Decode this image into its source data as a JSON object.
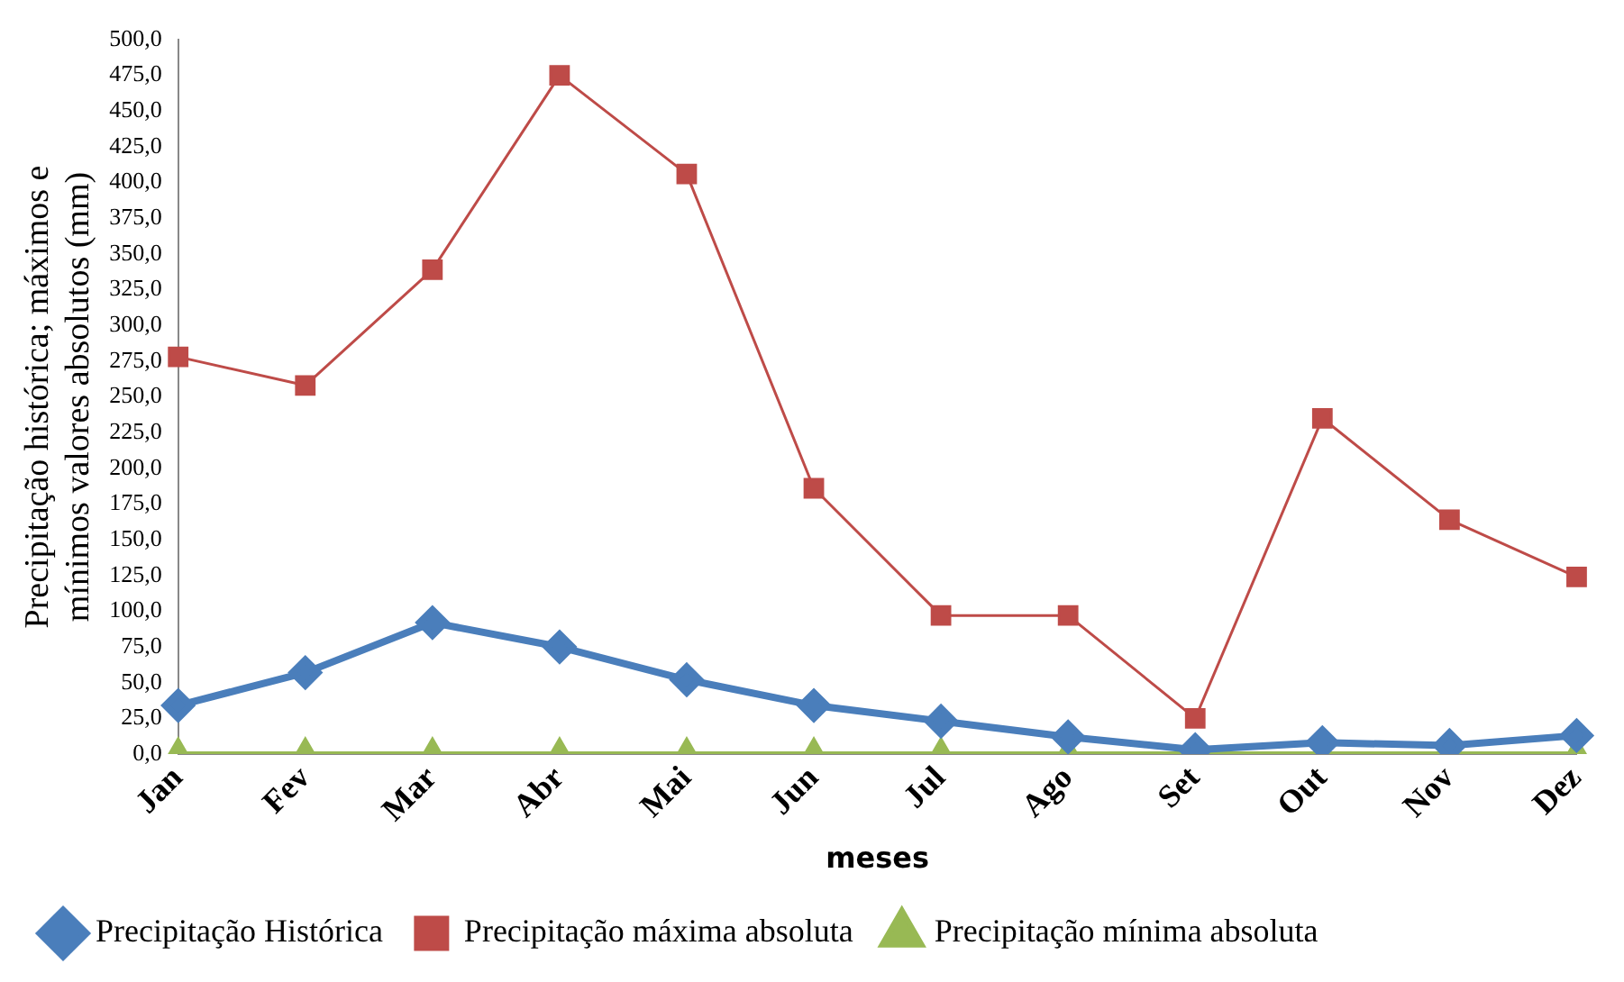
{
  "chart_data": {
    "type": "line",
    "xlabel": "meses",
    "ylabel": "Precipitação histórica; máximos e\nmínimos valores absolutos (mm)",
    "categories": [
      "Jan",
      "Fev",
      "Mar",
      "Abr",
      "Mai",
      "Jun",
      "Jul",
      "Ago",
      "Set",
      "Out",
      "Nov",
      "Dez"
    ],
    "series": [
      {
        "name": "Precipitação Histórica",
        "color": "#4a7ebb",
        "marker": "diamond",
        "values": [
          34,
          57,
          92,
          75,
          52,
          34,
          23,
          12,
          3,
          8,
          6,
          13
        ]
      },
      {
        "name": "Precipitação máxima absoluta",
        "color": "#be4b48",
        "marker": "square",
        "values": [
          278,
          258,
          339,
          475,
          406,
          186,
          97,
          97,
          25,
          235,
          164,
          124
        ]
      },
      {
        "name": "Precipitação mínima absoluta",
        "color": "#98b954",
        "marker": "triangle",
        "values": [
          0,
          0,
          0,
          0,
          0,
          0,
          0,
          0,
          0,
          0,
          0,
          0
        ]
      }
    ],
    "ylim": [
      0,
      500
    ],
    "yticks": [
      {
        "value": 0,
        "label": "0,0"
      },
      {
        "value": 25,
        "label": "25,0"
      },
      {
        "value": 50,
        "label": "50,0"
      },
      {
        "value": 75,
        "label": "75,0"
      },
      {
        "value": 100,
        "label": "100,0"
      },
      {
        "value": 125,
        "label": "125,0"
      },
      {
        "value": 150,
        "label": "150,0"
      },
      {
        "value": 175,
        "label": "175,0"
      },
      {
        "value": 200,
        "label": "200,0"
      },
      {
        "value": 225,
        "label": "225,0"
      },
      {
        "value": 250,
        "label": "250,0"
      },
      {
        "value": 275,
        "label": "275,0"
      },
      {
        "value": 300,
        "label": "300,0"
      },
      {
        "value": 325,
        "label": "325,0"
      },
      {
        "value": 350,
        "label": "350,0"
      },
      {
        "value": 375,
        "label": "375,0"
      },
      {
        "value": 400,
        "label": "400,0"
      },
      {
        "value": 425,
        "label": "425,0"
      },
      {
        "value": 450,
        "label": "450,0"
      },
      {
        "value": 475,
        "label": "475,0"
      },
      {
        "value": 500,
        "label": "500,0"
      }
    ],
    "grid": false,
    "legend": "bottom"
  }
}
